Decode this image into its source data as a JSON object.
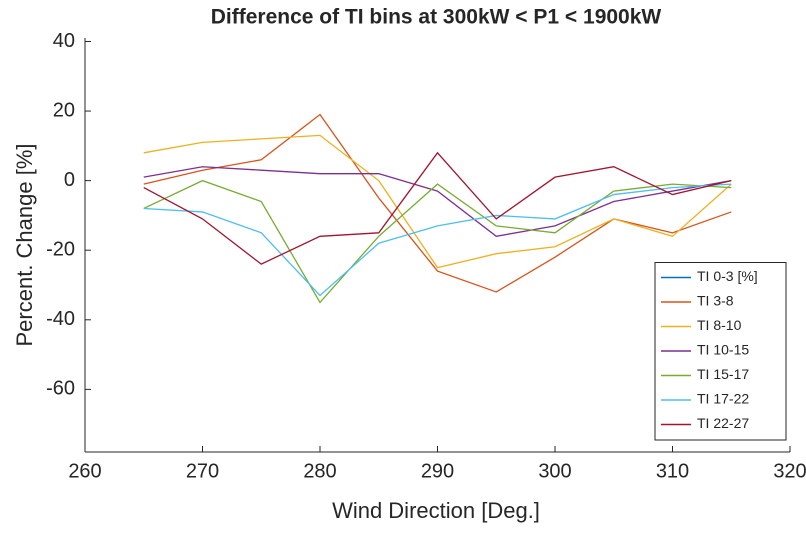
{
  "chart_data": {
    "type": "line",
    "title": "Difference of TI bins at 300kW < P1 < 1900kW",
    "x_label": "Wind Direction [Deg.]",
    "y_label": "Percent. Change [%]",
    "x": [
      265,
      270,
      275,
      280,
      285,
      290,
      295,
      300,
      305,
      310,
      315
    ],
    "series": [
      {
        "name": "TI 0-3 [%]",
        "color": "#0072BD",
        "values": [
          null,
          null,
          null,
          null,
          null,
          null,
          null,
          null,
          null,
          null,
          null
        ]
      },
      {
        "name": "TI 3-8",
        "color": "#D95319",
        "values": [
          -1,
          3,
          6,
          19,
          -5,
          -26,
          -32,
          -22,
          -11,
          -15,
          -9
        ]
      },
      {
        "name": "TI 8-10",
        "color": "#EDB120",
        "values": [
          8,
          11,
          12,
          13,
          0,
          -25,
          -21,
          -19,
          -11,
          -16,
          -1
        ]
      },
      {
        "name": "TI 10-15",
        "color": "#7E2F8E",
        "values": [
          1,
          4,
          3,
          2,
          2,
          -3,
          -16,
          -13,
          -6,
          -3,
          0
        ]
      },
      {
        "name": "TI 15-17",
        "color": "#77AC30",
        "values": [
          -8,
          0,
          -6,
          -35,
          -16,
          -1,
          -13,
          -15,
          -3,
          -1,
          -2
        ]
      },
      {
        "name": "TI 17-22",
        "color": "#4DBEEE",
        "values": [
          -8,
          -9,
          -15,
          -33,
          -18,
          -13,
          -10,
          -11,
          -4,
          -2,
          -1
        ]
      },
      {
        "name": "TI 22-27",
        "color": "#A2142F",
        "values": [
          -2,
          -11,
          -24,
          -16,
          -15,
          8,
          -11,
          1,
          4,
          -4,
          0
        ]
      }
    ],
    "xlim": [
      260,
      320
    ],
    "xticks": [
      260,
      270,
      280,
      290,
      300,
      310,
      320
    ],
    "ylim": [
      -78,
      41
    ],
    "yticks": [
      -60,
      -40,
      -20,
      0,
      20,
      40
    ],
    "legend": "southeast"
  }
}
